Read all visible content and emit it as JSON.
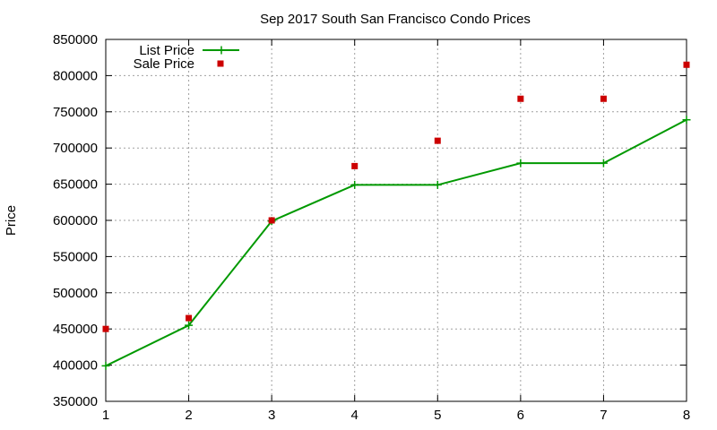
{
  "chart_data": {
    "type": "line",
    "title": "Sep 2017 South San Francisco Condo Prices",
    "xlabel": "",
    "ylabel": "Price",
    "xlim": [
      1,
      8
    ],
    "ylim": [
      350000,
      850000
    ],
    "x_ticks": [
      1,
      2,
      3,
      4,
      5,
      6,
      7,
      8
    ],
    "y_ticks": [
      350000,
      400000,
      450000,
      500000,
      550000,
      600000,
      650000,
      700000,
      750000,
      800000,
      850000
    ],
    "grid": true,
    "legend_position": "top-left",
    "series": [
      {
        "name": "List Price",
        "style": "line-with-plus-markers",
        "color": "#009900",
        "x": [
          1,
          2,
          3,
          4,
          5,
          6,
          7,
          8
        ],
        "values": [
          399000,
          455000,
          599000,
          649000,
          649000,
          679000,
          679000,
          739000
        ]
      },
      {
        "name": "Sale Price",
        "style": "square-markers",
        "color": "#cc0000",
        "x": [
          1,
          2,
          3,
          4,
          5,
          6,
          7,
          8
        ],
        "values": [
          450000,
          465000,
          600000,
          675000,
          710000,
          768000,
          768000,
          815000
        ]
      }
    ]
  }
}
